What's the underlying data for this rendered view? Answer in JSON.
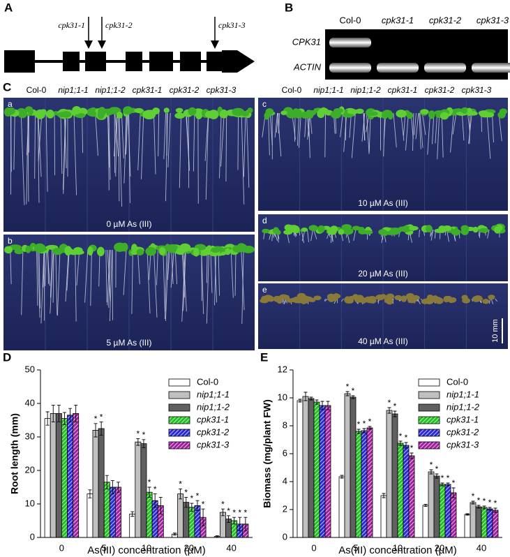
{
  "gene_diagram": {
    "panel_label": "A",
    "insertions": [
      "cpk31-1",
      "cpk31-2",
      "cpk31-3"
    ]
  },
  "gel": {
    "panel_label": "B",
    "lanes": [
      "Col-0",
      "cpk31-1",
      "cpk31-2",
      "cpk31-3"
    ],
    "genes": [
      "CPK31",
      "ACTIN"
    ]
  },
  "photos": {
    "panel_label": "C",
    "genotypes": [
      "Col-0",
      "nip1;1-1",
      "nip1;1-2",
      "cpk31-1",
      "cpk31-2",
      "cpk31-3"
    ],
    "plates": [
      {
        "label": "a",
        "caption": "0 µM As (III)"
      },
      {
        "label": "b",
        "caption": "5 µM As (III)"
      },
      {
        "label": "c",
        "caption": "10 µM As (III)"
      },
      {
        "label": "d",
        "caption": "20 µM As (III)"
      },
      {
        "label": "e",
        "caption": "40 µM As (III)"
      }
    ],
    "scale_bar": "10 mm"
  },
  "chart_data": [
    {
      "type": "bar",
      "panel_label": "D",
      "xlabel": "As(III) concentration (µM)",
      "ylabel": "Root length (mm)",
      "categories": [
        "0",
        "5",
        "10",
        "20",
        "40"
      ],
      "ylim": [
        0,
        50
      ],
      "yticks": [
        0,
        10,
        20,
        30,
        40,
        50
      ],
      "legend": "upper right",
      "series": [
        {
          "name": "Col-0",
          "color": "#ffffff",
          "hatch": false,
          "values": [
            35.5,
            13,
            7,
            1,
            0.3
          ],
          "errors": [
            2,
            1.2,
            0.7,
            0.3,
            0.2
          ],
          "significance": [
            null,
            null,
            null,
            null,
            null
          ]
        },
        {
          "name": "nip1;1-1",
          "color": "#c0c0c0",
          "hatch": false,
          "values": [
            37,
            32,
            28.5,
            13,
            7.5
          ],
          "errors": [
            2.5,
            2,
            1,
            1.5,
            1
          ],
          "significance": [
            null,
            "*",
            "*",
            "*",
            "*"
          ]
        },
        {
          "name": "nip1;1-2",
          "color": "#606060",
          "hatch": false,
          "values": [
            37,
            32.5,
            28,
            10.5,
            5.5
          ],
          "errors": [
            2.5,
            2,
            1.2,
            1.5,
            1
          ],
          "significance": [
            null,
            "*",
            "*",
            "*",
            "*"
          ]
        },
        {
          "name": "cpk31-1",
          "color": "#22c222",
          "hatch": true,
          "values": [
            35.5,
            16.5,
            13.5,
            9,
            5
          ],
          "errors": [
            1.8,
            2,
            1.5,
            1.2,
            1
          ],
          "significance": [
            null,
            null,
            "*",
            "*",
            "*"
          ]
        },
        {
          "name": "cpk31-2",
          "color": "#2a2ad8",
          "hatch": true,
          "values": [
            36.5,
            15,
            11,
            9.5,
            4
          ],
          "errors": [
            2,
            2,
            2,
            1.5,
            2
          ],
          "significance": [
            null,
            null,
            "*",
            "*",
            "*"
          ]
        },
        {
          "name": "cpk31-3",
          "color": "#a020a0",
          "hatch": true,
          "values": [
            37,
            15,
            9.5,
            6,
            4
          ],
          "errors": [
            2.5,
            1.5,
            2.5,
            2.5,
            2
          ],
          "significance": [
            null,
            null,
            null,
            "*",
            "*"
          ]
        }
      ]
    },
    {
      "type": "bar",
      "panel_label": "E",
      "xlabel": "As(III) concentration (µM)",
      "ylabel": "Biomass (mg/plant FW)",
      "categories": [
        "0",
        "5",
        "10",
        "20",
        "40"
      ],
      "ylim": [
        0,
        12
      ],
      "yticks": [
        0,
        2,
        4,
        6,
        8,
        10,
        12
      ],
      "legend": "upper right",
      "series": [
        {
          "name": "Col-0",
          "color": "#ffffff",
          "hatch": false,
          "values": [
            9.8,
            4.35,
            3.0,
            2.3,
            1.65
          ],
          "errors": [
            0.1,
            0.1,
            0.15,
            0.08,
            0.05
          ],
          "significance": [
            null,
            null,
            null,
            null,
            null
          ]
        },
        {
          "name": "nip1;1-1",
          "color": "#c0c0c0",
          "hatch": false,
          "values": [
            10.1,
            10.3,
            9.1,
            4.7,
            2.5
          ],
          "errors": [
            0.3,
            0.15,
            0.2,
            0.15,
            0.1
          ],
          "significance": [
            null,
            "*",
            "*",
            "*",
            "*"
          ]
        },
        {
          "name": "nip1;1-2",
          "color": "#606060",
          "hatch": false,
          "values": [
            9.95,
            10.05,
            8.85,
            4.4,
            2.2
          ],
          "errors": [
            0.1,
            0.1,
            0.2,
            0.15,
            0.1
          ],
          "significance": [
            null,
            "*",
            "*",
            "*",
            "*"
          ]
        },
        {
          "name": "cpk31-1",
          "color": "#22c222",
          "hatch": true,
          "values": [
            9.7,
            7.6,
            6.75,
            3.8,
            2.15
          ],
          "errors": [
            0.15,
            0.15,
            0.15,
            0.1,
            0.1
          ],
          "significance": [
            null,
            "*",
            "*",
            "*",
            "*"
          ]
        },
        {
          "name": "cpk31-2",
          "color": "#2a2ad8",
          "hatch": true,
          "values": [
            9.45,
            7.65,
            6.6,
            3.8,
            2.05
          ],
          "errors": [
            0.3,
            0.15,
            0.2,
            0.1,
            0.1
          ],
          "significance": [
            null,
            "*",
            "*",
            "*",
            "*"
          ]
        },
        {
          "name": "cpk31-3",
          "color": "#a020a0",
          "hatch": true,
          "values": [
            9.45,
            7.85,
            5.85,
            3.2,
            1.95
          ],
          "errors": [
            0.3,
            0.1,
            0.2,
            0.35,
            0.15
          ],
          "significance": [
            null,
            "*",
            "*",
            "*",
            "*"
          ]
        }
      ]
    }
  ]
}
